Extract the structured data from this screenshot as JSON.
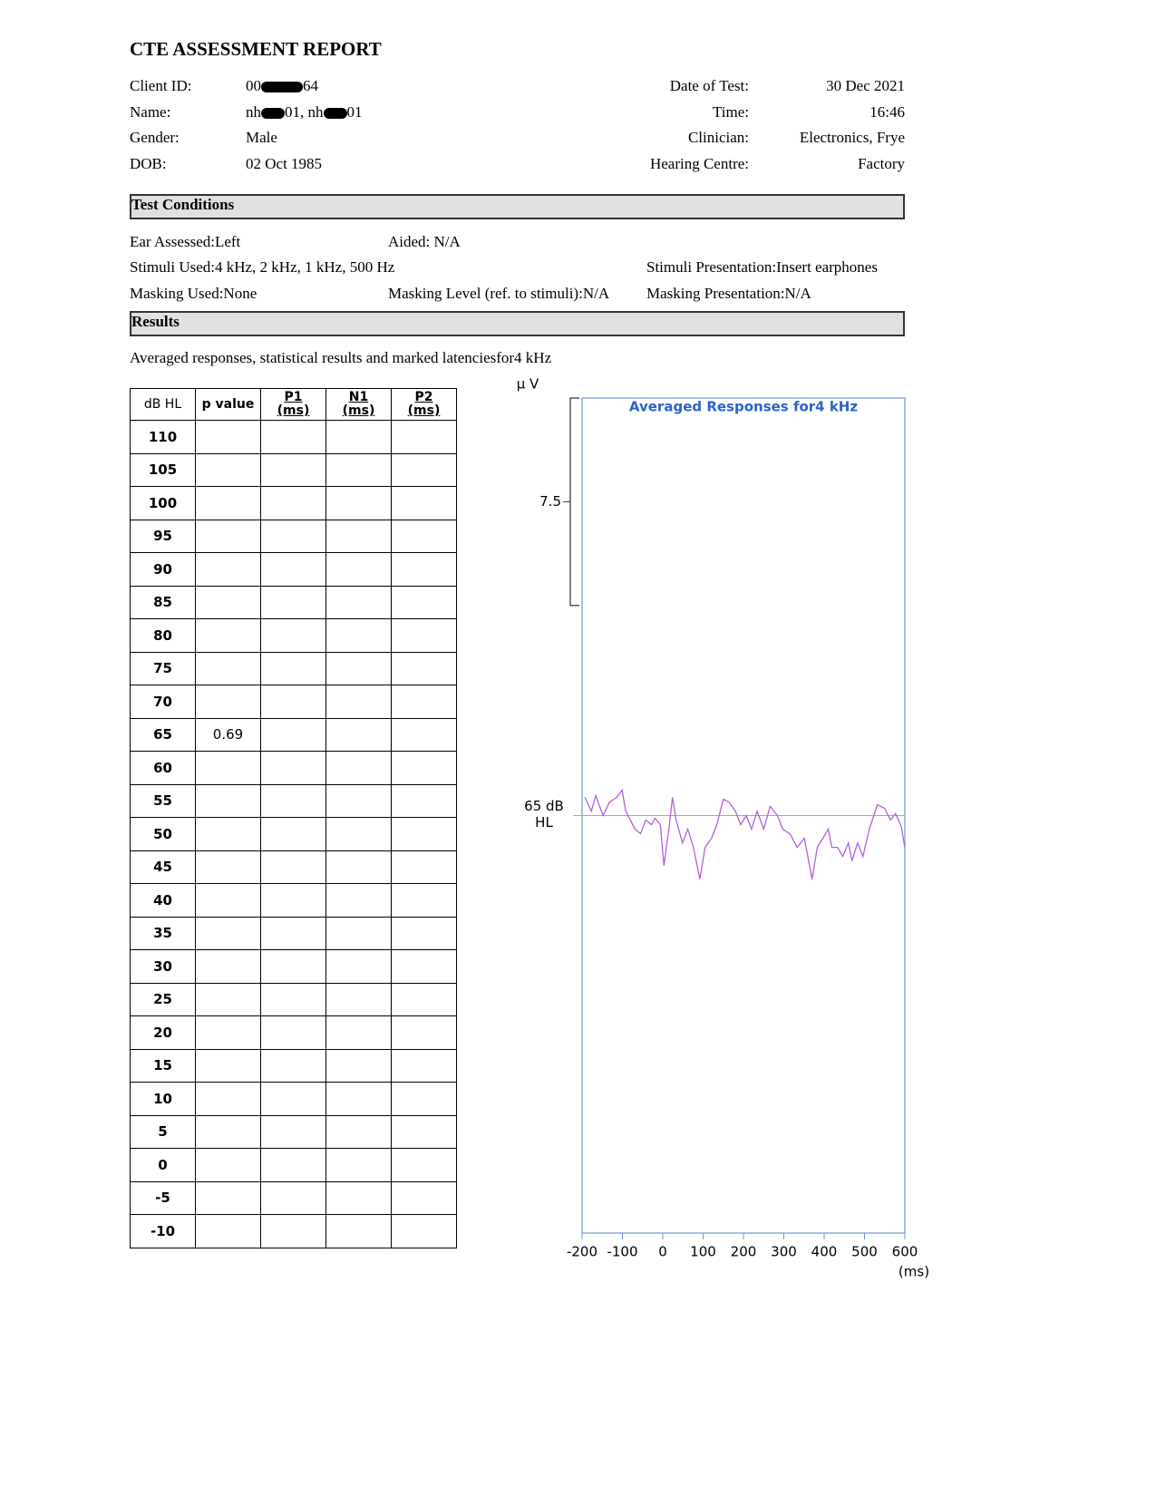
{
  "header": {
    "title": "CTE ASSESSMENT REPORT",
    "left": [
      {
        "label": "Client ID:",
        "value_parts": [
          "00",
          "64"
        ]
      },
      {
        "label": "Name:",
        "value_parts": [
          "nh",
          "01, nh",
          "01"
        ]
      },
      {
        "label": "Gender:",
        "value": "Male"
      },
      {
        "label": "DOB:",
        "value": "02 Oct 1985"
      }
    ],
    "right": [
      {
        "label": "Date of Test:",
        "value": "30 Dec 2021"
      },
      {
        "label": "Time:",
        "value": "16:46"
      },
      {
        "label": "Clinician:",
        "value": "Electronics, Frye"
      },
      {
        "label": "Hearing Centre:",
        "value": "Factory"
      }
    ]
  },
  "test_conditions": {
    "heading": "Test Conditions",
    "items": [
      "Ear Assessed:Left",
      "Aided: N/A",
      "Stimuli Used:4 kHz, 2 kHz, 1 kHz, 500 Hz",
      "Stimuli Presentation:Insert earphones",
      "Masking Used:None",
      "Masking Level (ref. to stimuli):N/A",
      "Masking Presentation:N/A"
    ]
  },
  "results": {
    "heading": "Results",
    "caption": "Averaged responses, statistical results and marked latenciesfor4 kHz",
    "table": {
      "columns": [
        "dB HL",
        "p value",
        "P1 (ms)",
        "N1 (ms)",
        "P2 (ms)"
      ],
      "rows": [
        {
          "level": 110
        },
        {
          "level": 105
        },
        {
          "level": 100
        },
        {
          "level": 95
        },
        {
          "level": 90
        },
        {
          "level": 85
        },
        {
          "level": 80
        },
        {
          "level": 75
        },
        {
          "level": 70
        },
        {
          "level": 65,
          "p_value": 0.69
        },
        {
          "level": 60
        },
        {
          "level": 55
        },
        {
          "level": 50
        },
        {
          "level": 45
        },
        {
          "level": 40
        },
        {
          "level": 35
        },
        {
          "level": 30
        },
        {
          "level": 25
        },
        {
          "level": 20
        },
        {
          "level": 15
        },
        {
          "level": 10
        },
        {
          "level": 5
        },
        {
          "level": 0
        },
        {
          "level": -5
        },
        {
          "level": -10
        }
      ]
    }
  },
  "chart": {
    "type": "line",
    "title": "Averaged Responses for4 kHz",
    "y_unit": "μ V",
    "x_unit": "(ms)",
    "xlim": [
      -200,
      600
    ],
    "xticks": [
      -200,
      -100,
      0,
      100,
      200,
      300,
      400,
      500,
      600
    ],
    "ylim": [
      -15.1,
      15.1
    ],
    "scale_bar": 7.5,
    "series": {
      "name": "65 dB HL",
      "color": "#b060e0",
      "x": [
        -193,
        -177,
        -166,
        -148,
        -132,
        -114,
        -101,
        -92,
        -69,
        -55,
        -42,
        -28,
        -19,
        -6,
        3,
        15,
        24,
        33,
        49,
        62,
        76,
        92,
        105,
        121,
        134,
        150,
        164,
        180,
        193,
        207,
        220,
        234,
        250,
        266,
        284,
        297,
        315,
        333,
        351,
        370,
        383,
        397,
        410,
        419,
        433,
        446,
        460,
        469,
        483,
        496,
        512,
        532,
        550,
        564,
        577,
        591,
        600
      ],
      "values": [
        0.66,
        0.16,
        0.72,
        0,
        0.49,
        0.66,
        0.92,
        0.16,
        -0.49,
        -0.66,
        -0.16,
        -0.33,
        -0.1,
        -0.33,
        -1.81,
        -0.49,
        0.66,
        -0.16,
        -0.99,
        -0.49,
        -1.15,
        -2.3,
        -1.15,
        -0.82,
        -0.33,
        0.59,
        0.49,
        0.16,
        -0.33,
        0,
        -0.49,
        0.16,
        -0.49,
        0.33,
        0,
        -0.49,
        -0.66,
        -1.15,
        -0.82,
        -2.3,
        -1.15,
        -0.82,
        -0.49,
        -1.15,
        -1.15,
        -1.48,
        -0.99,
        -1.64,
        -0.99,
        -1.48,
        -0.49,
        0.39,
        0.26,
        -0.16,
        0.07,
        -0.39,
        -1.15
      ]
    },
    "baseline_color": "#9aa8c8",
    "frame_color": "#6f93d9",
    "title_color": "#2e62c8"
  }
}
